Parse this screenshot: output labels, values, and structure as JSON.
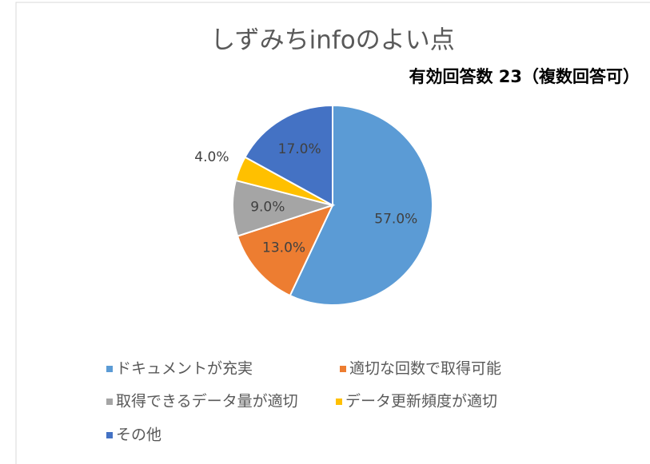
{
  "chart_data": {
    "type": "pie",
    "title": "しずみちinfoのよい点",
    "subtitle": "有効回答数 23（複数回答可）",
    "categories": [
      "ドキュメントが充実",
      "適切な回数で取得可能",
      "取得できるデータ量が適切",
      "データ更新頻度が適切",
      "その他"
    ],
    "values": [
      57,
      13,
      9,
      4,
      17
    ],
    "value_labels": [
      "57.0%",
      "13.0%",
      "9.0%",
      "4.0%",
      "17.0%"
    ],
    "colors": [
      "#5b9bd5",
      "#ed7d31",
      "#a5a5a5",
      "#ffc000",
      "#4472c4"
    ],
    "legend": "bottom"
  }
}
